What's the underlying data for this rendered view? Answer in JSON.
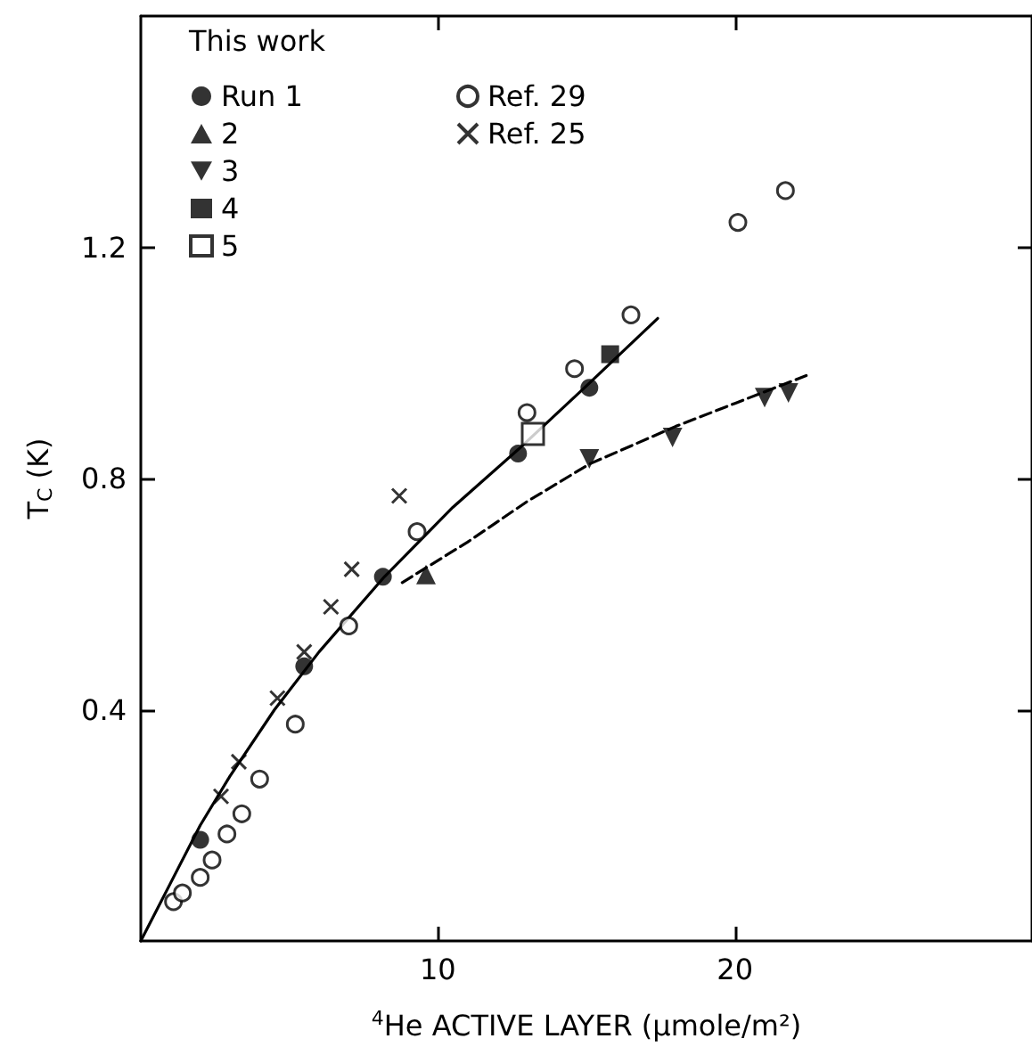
{
  "chart_data": {
    "type": "scatter",
    "xlabel": "$^{4}$He ACTIVE LAYER (μmole/m²)",
    "ylabel": "T$_{C}$ (K)",
    "legend_title": "This work",
    "xlim": [
      0,
      30
    ],
    "ylim": [
      0,
      1.6
    ],
    "xticks": [
      10,
      20
    ],
    "yticks": [
      0.4,
      0.8,
      1.2
    ],
    "grid": false,
    "legend": "top left",
    "series": [
      {
        "name": "Run 1",
        "color": "#000000",
        "marker": "circle",
        "x": [
          2.0,
          5.5,
          8.15,
          12.7,
          15.1
        ],
        "values": [
          0.175,
          0.475,
          0.63,
          0.843,
          0.957
        ]
      },
      {
        "name": "2",
        "color": "#000000",
        "marker": "triangle",
        "x": [
          9.6
        ],
        "values": [
          0.634
        ]
      },
      {
        "name": "3",
        "color": "#000000",
        "marker": "triangle-down",
        "x": [
          15.1,
          17.9,
          21.0,
          21.8
        ],
        "values": [
          0.834,
          0.871,
          0.94,
          0.948
        ]
      },
      {
        "name": "4",
        "color": "#000000",
        "marker": "square",
        "x": [
          15.8
        ],
        "values": [
          1.015
        ]
      },
      {
        "name": "5",
        "color": "#000000",
        "marker": "square-open",
        "x": [
          13.2
        ],
        "values": [
          0.877
        ]
      },
      {
        "name": "Ref. 29",
        "color": "#000000",
        "marker": "circle-open",
        "x": [
          1.1,
          1.4,
          2.0,
          2.4,
          2.9,
          3.4,
          4.0,
          5.2,
          7.0,
          9.3,
          13.0,
          14.6,
          16.5,
          20.1,
          21.7
        ],
        "values": [
          0.068,
          0.083,
          0.11,
          0.14,
          0.185,
          0.22,
          0.28,
          0.375,
          0.545,
          0.708,
          0.914,
          0.99,
          1.083,
          1.243,
          1.298
        ]
      },
      {
        "name": "Ref. 25",
        "color": "#000000",
        "marker": "cross",
        "x": [
          2.7,
          3.3,
          4.6,
          5.5,
          6.4,
          7.1,
          8.7
        ],
        "values": [
          0.25,
          0.31,
          0.42,
          0.5,
          0.578,
          0.643,
          0.77
        ]
      },
      {
        "type": "line",
        "color": "#000000",
        "marker": "none",
        "line_style": "solid",
        "x": [
          0,
          1,
          2,
          3,
          4.5,
          6,
          8.2,
          10.5,
          12.7,
          15,
          17.4
        ],
        "values": [
          0,
          0.1,
          0.2,
          0.285,
          0.4,
          0.5,
          0.63,
          0.75,
          0.85,
          0.96,
          1.077
        ]
      },
      {
        "type": "line",
        "color": "#000000",
        "marker": "none",
        "line_style": "dashed",
        "x": [
          8.8,
          11,
          13,
          15.1,
          18,
          20,
          22.4
        ],
        "values": [
          0.62,
          0.69,
          0.76,
          0.825,
          0.89,
          0.93,
          0.978
        ]
      }
    ]
  }
}
